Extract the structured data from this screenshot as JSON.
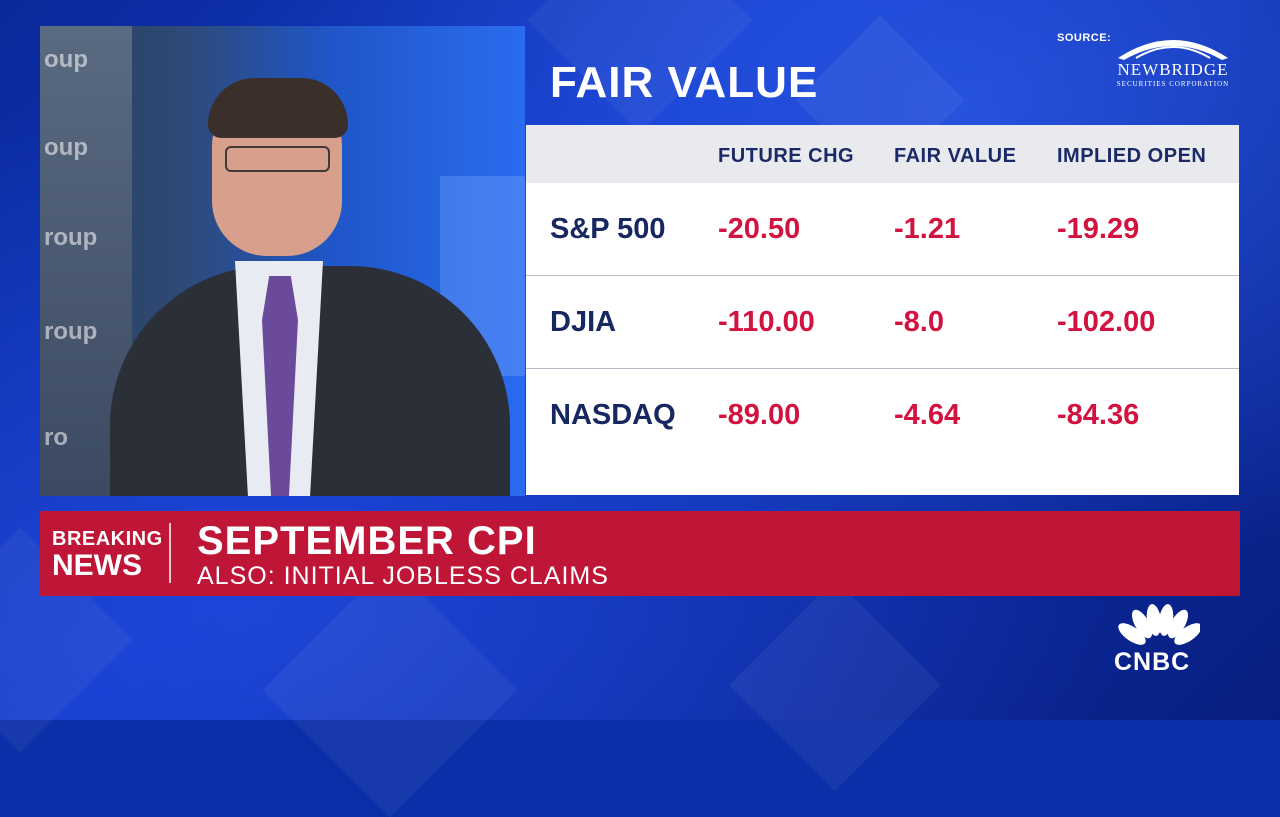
{
  "fair_value": {
    "title": "FAIR VALUE",
    "source_label": "SOURCE:",
    "source_logo_name": "NEWBRIDGE",
    "source_logo_sub": "SECURITIES CORPORATION",
    "columns": [
      "FUTURE CHG",
      "FAIR VALUE",
      "IMPLIED OPEN"
    ],
    "rows": [
      {
        "name": "S&P 500",
        "future_chg": "-20.50",
        "fair_value": "-1.21",
        "implied_open": "-19.29"
      },
      {
        "name": "DJIA",
        "future_chg": "-110.00",
        "fair_value": "-8.0",
        "implied_open": "-102.00"
      },
      {
        "name": "NASDAQ",
        "future_chg": "-89.00",
        "fair_value": "-4.64",
        "implied_open": "-84.36"
      }
    ]
  },
  "breaking": {
    "line1": "BREAKING",
    "line2": "NEWS",
    "headline": "SEPTEMBER CPI",
    "subline": "ALSO: INITIAL JOBLESS CLAIMS"
  },
  "network": {
    "logo_text": "CNBC"
  },
  "video": {
    "wall_text": [
      "oup",
      "oup",
      "roup",
      "roup",
      "ro"
    ]
  },
  "colors": {
    "background_blue": "#0b2fa8",
    "banner_red": "#bf1537",
    "value_red": "#d3133f",
    "name_navy": "#172760"
  }
}
